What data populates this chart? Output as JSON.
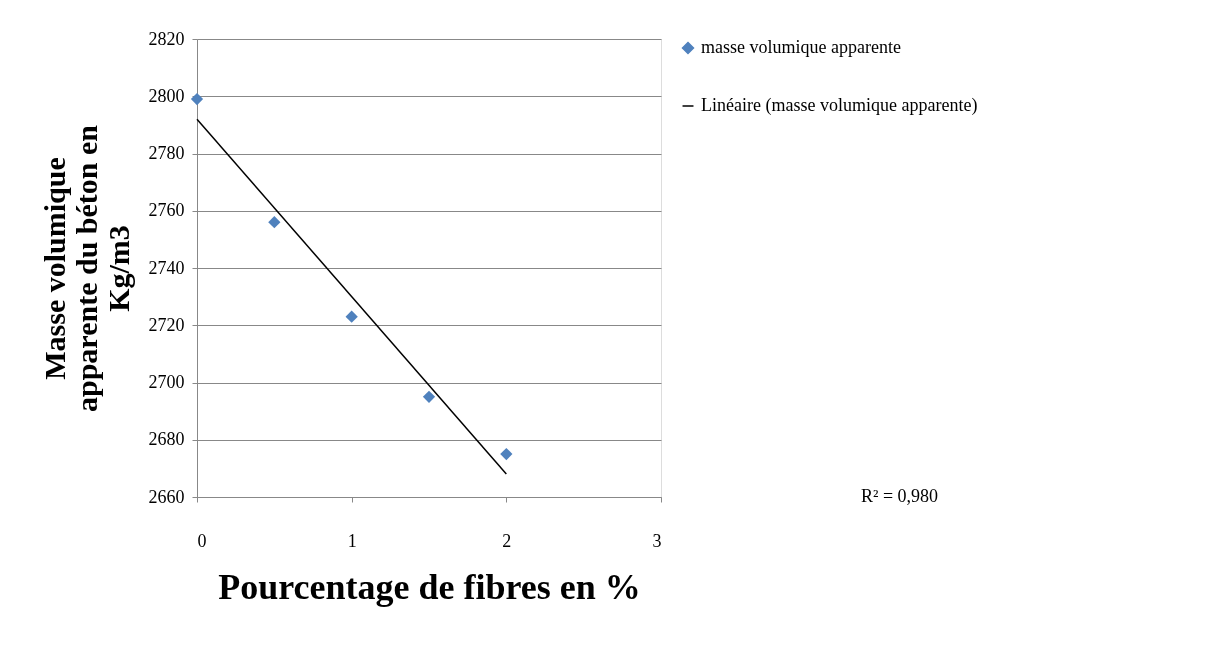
{
  "chart_data": {
    "type": "scatter",
    "xlabel": "Pourcentage de fibres en %",
    "ylabel": "Masse volumique apparente du béton en Kg/m3",
    "x": [
      0,
      0.5,
      1,
      1.5,
      2
    ],
    "series": [
      {
        "name": "masse volumique apparente",
        "type": "scatter",
        "marker": "diamond",
        "color": "#4f81bd",
        "values": [
          2799,
          2756,
          2723,
          2695,
          2675
        ]
      },
      {
        "name": "Linéaire (masse volumique apparente)",
        "type": "line",
        "marker": "none",
        "line_style": "solid",
        "color": "#000000",
        "x": [
          0,
          2
        ],
        "values": [
          2792,
          2668
        ]
      }
    ],
    "xlim": [
      0,
      3
    ],
    "xticks": [
      0,
      1,
      2,
      3
    ],
    "ylim": [
      2660,
      2820
    ],
    "yticks": [
      2660,
      2680,
      2700,
      2720,
      2740,
      2760,
      2780,
      2800,
      2820
    ],
    "grid": "y",
    "legend": "right",
    "annotations": [
      "R² = 0,980"
    ]
  }
}
